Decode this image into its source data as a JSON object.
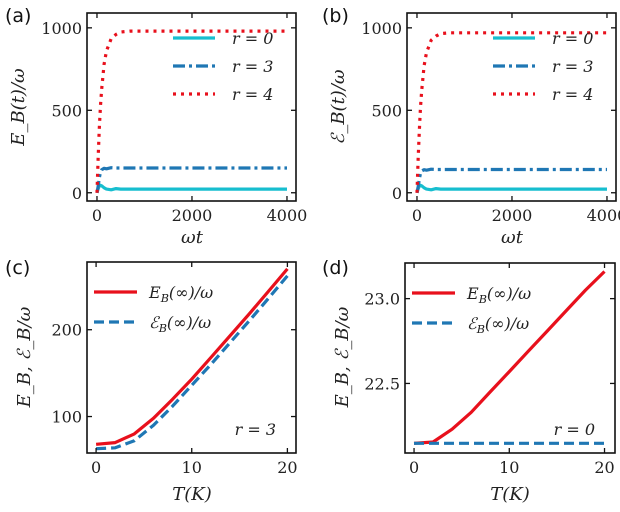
{
  "chart_data": [
    {
      "panel": "(a)",
      "type": "line",
      "xlabel": "ωt",
      "ylabel": "E_B(t)/ω",
      "xlim": [
        -210,
        4190
      ],
      "ylim": [
        -50,
        1090
      ],
      "xticks": [
        0,
        2000,
        4000
      ],
      "yticks": [
        0,
        500,
        1000
      ],
      "legend": "top-right",
      "grid": false,
      "x": [
        0,
        25,
        50,
        75,
        100,
        150,
        200,
        300,
        400,
        500,
        700,
        1000,
        2000,
        3000,
        4000
      ],
      "series": [
        {
          "name": "r = 0",
          "color": "#17becf",
          "dash": "solid",
          "values": [
            0,
            25,
            40,
            45,
            42,
            30,
            22,
            18,
            25,
            22,
            22,
            22,
            22,
            22,
            22
          ]
        },
        {
          "name": "r = 3",
          "color": "#1f77b4",
          "dash": "dashdot",
          "values": [
            0,
            40,
            90,
            125,
            140,
            148,
            145,
            152,
            150,
            150,
            150,
            150,
            150,
            150,
            150
          ]
        },
        {
          "name": "r = 4",
          "color": "#e8101c",
          "dash": "dotted",
          "values": [
            0,
            220,
            390,
            530,
            630,
            780,
            860,
            935,
            960,
            975,
            980,
            980,
            980,
            980,
            980
          ]
        }
      ]
    },
    {
      "panel": "(b)",
      "type": "line",
      "xlabel": "ωt",
      "ylabel": "ℰ_B(t)/ω",
      "xlim": [
        -210,
        4190
      ],
      "ylim": [
        -50,
        1090
      ],
      "xticks": [
        0,
        2000,
        4000
      ],
      "yticks": [
        0,
        500,
        1000
      ],
      "legend": "top-right",
      "grid": false,
      "x": [
        0,
        25,
        50,
        75,
        100,
        150,
        200,
        300,
        400,
        500,
        700,
        1000,
        2000,
        3000,
        4000
      ],
      "series": [
        {
          "name": "r = 0",
          "color": "#17becf",
          "dash": "solid",
          "values": [
            0,
            25,
            40,
            45,
            42,
            30,
            22,
            18,
            25,
            22,
            22,
            22,
            22,
            22,
            22
          ]
        },
        {
          "name": "r = 3",
          "color": "#1f77b4",
          "dash": "dashdot",
          "values": [
            0,
            38,
            85,
            118,
            132,
            140,
            137,
            143,
            141,
            141,
            141,
            141,
            141,
            141,
            141
          ]
        },
        {
          "name": "r = 4",
          "color": "#e8101c",
          "dash": "dotted",
          "values": [
            0,
            215,
            385,
            520,
            620,
            770,
            850,
            925,
            950,
            965,
            970,
            970,
            970,
            970,
            970
          ]
        }
      ]
    },
    {
      "panel": "(c)",
      "type": "line",
      "xlabel": "T(K)",
      "ylabel": "E_B, ℰ_B/ω",
      "xlim": [
        -0.95,
        20.9
      ],
      "ylim": [
        58,
        278
      ],
      "xticks": [
        0,
        10,
        20
      ],
      "yticks": [
        100,
        200
      ],
      "legend": "top-left",
      "grid": false,
      "annotation": "r = 3",
      "x": [
        0,
        2,
        4,
        6,
        8,
        10,
        12,
        14,
        16,
        18,
        20
      ],
      "series": [
        {
          "name": "E_B(∞)/ω",
          "color": "#e8101c",
          "dash": "solid",
          "values": [
            68,
            70,
            80,
            98,
            120,
            143,
            168,
            193,
            218,
            244,
            270
          ]
        },
        {
          "name": "ℰ_B(∞)/ω",
          "color": "#1f77b4",
          "dash": "dashed",
          "values": [
            63,
            64,
            72,
            90,
            112,
            136,
            160,
            185,
            210,
            236,
            262
          ]
        }
      ]
    },
    {
      "panel": "(d)",
      "type": "line",
      "xlabel": "T(K)",
      "ylabel": "E_B, ℰ_B/ω",
      "xlim": [
        -0.95,
        21.1
      ],
      "ylim": [
        22.09,
        23.21
      ],
      "xticks": [
        0,
        10,
        20
      ],
      "yticks": [
        22.5,
        23.0
      ],
      "ytick_labels": [
        "22.5",
        "23.0"
      ],
      "legend": "top-left",
      "grid": false,
      "annotation": "r = 0",
      "x": [
        0,
        2,
        4,
        6,
        8,
        10,
        12,
        14,
        16,
        18,
        20
      ],
      "series": [
        {
          "name": "E_B(∞)/ω",
          "color": "#e8101c",
          "dash": "solid",
          "values": [
            22.147,
            22.155,
            22.23,
            22.33,
            22.45,
            22.57,
            22.69,
            22.81,
            22.93,
            23.05,
            23.16
          ]
        },
        {
          "name": "ℰ_B(∞)/ω",
          "color": "#1f77b4",
          "dash": "dashed",
          "values": [
            22.147,
            22.147,
            22.147,
            22.147,
            22.147,
            22.147,
            22.147,
            22.147,
            22.147,
            22.147,
            22.147
          ]
        }
      ]
    }
  ]
}
